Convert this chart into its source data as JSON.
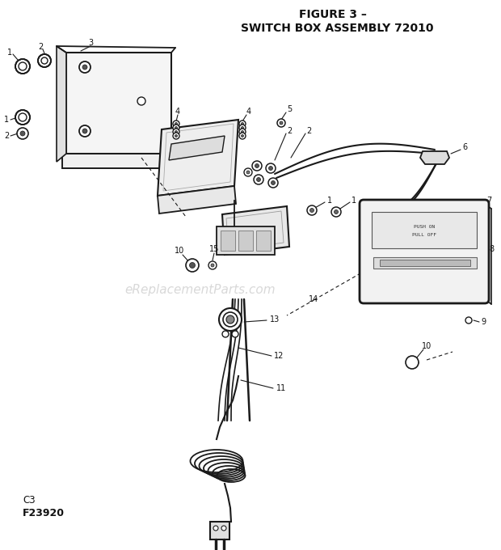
{
  "title_line1": "FIGURE 3 –",
  "title_line2": "SWITCH BOX ASSEMBLY 72010",
  "bottom_left_line1": "C3",
  "bottom_left_line2": "F23920",
  "watermark": "eReplacementParts.com",
  "bg_color": "#ffffff",
  "line_color": "#1a1a1a",
  "label_color": "#111111",
  "gray": "#888888"
}
